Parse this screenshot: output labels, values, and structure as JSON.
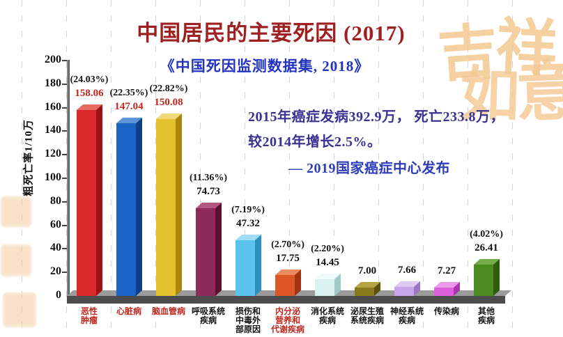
{
  "title": "中国居民的主要死因 (2017)",
  "subtitle": "《中国死因监测数据集, 2018》",
  "annotation": {
    "line1": "2015年癌症发病392.9万， 死亡233.8万，",
    "line2": "较2014年增长2.5%。",
    "line3": "— 2019国家癌症中心发布"
  },
  "decorations": {
    "corner_chars": [
      "吉",
      "祥",
      "如",
      "意"
    ],
    "deco_color": "#f4c891"
  },
  "chart_data": {
    "type": "bar",
    "title": "中国居民的主要死因 (2017)",
    "ylabel": "粗死亡率1/10万",
    "ylim": [
      0,
      200
    ],
    "ytick_step": 20,
    "grid": false,
    "legend": "none",
    "categories": [
      "恶性肿瘤",
      "心脏病",
      "脑血管病",
      "呼吸系统疾病",
      "损伤和中毒外部原因",
      "内分泌营养和代谢疾病",
      "消化系统疾病",
      "泌尿生殖系统疾病",
      "神经系统疾病",
      "传染病",
      "其他疾病"
    ],
    "category_lines": [
      [
        "恶性",
        "肿瘤"
      ],
      [
        "心脏病"
      ],
      [
        "脑血管病"
      ],
      [
        "呼吸系统",
        "疾病"
      ],
      [
        "损伤和",
        "中毒外",
        "部原因"
      ],
      [
        "内分泌",
        "营养和",
        "代谢疾病"
      ],
      [
        "消化系统",
        "疾病"
      ],
      [
        "泌尿生殖",
        "系统疾病"
      ],
      [
        "神经系统",
        "疾病"
      ],
      [
        "传染病"
      ],
      [
        "其他",
        "疾病"
      ]
    ],
    "values": [
      158.06,
      147.04,
      150.08,
      74.73,
      47.32,
      17.75,
      14.45,
      7.0,
      7.66,
      7.27,
      26.41
    ],
    "value_display": [
      "158.06",
      "147.04",
      "150.08",
      "74.73",
      "47.32",
      "17.75",
      "14.45",
      "7.00",
      "7.66",
      "7.27",
      "26.41"
    ],
    "percents": [
      "(24.03%)",
      "(22.35%)",
      "(22.82%)",
      "(11.36%)",
      "(7.19%)",
      "(2.70%)",
      "(2.20%)",
      null,
      null,
      null,
      "(4.02%)"
    ],
    "bar_colors": [
      {
        "front": "#d9292b",
        "top": "#e96a60",
        "side": "#9a1212"
      },
      {
        "front": "#1b63c5",
        "top": "#5e95da",
        "side": "#0e3e88"
      },
      {
        "front": "#e7c22f",
        "top": "#f1d87b",
        "side": "#ad860e"
      },
      {
        "front": "#8e2a5a",
        "top": "#b2577f",
        "side": "#5c1034"
      },
      {
        "front": "#5cc3ee",
        "top": "#a0dcf5",
        "side": "#2e8cbe"
      },
      {
        "front": "#dd5626",
        "top": "#ea8a5e",
        "side": "#a03410"
      },
      {
        "front": "#d9f1ef",
        "top": "#eefbfa",
        "side": "#a2c8ca"
      },
      {
        "front": "#897b1c",
        "top": "#b3a544",
        "side": "#5c500c"
      },
      {
        "front": "#c8a5e9",
        "top": "#dfc8f2",
        "side": "#9b76c2"
      },
      {
        "front": "#dd60dd",
        "top": "#ec99ec",
        "side": "#aa35aa"
      },
      {
        "front": "#4c8b20",
        "top": "#76ac48",
        "side": "#2f5c10"
      }
    ],
    "red_value_indices": [
      0,
      1,
      2
    ],
    "red_label_indices": [
      0,
      1,
      2,
      5
    ],
    "accent_red": "#c0281e",
    "text_black": "#111111"
  }
}
